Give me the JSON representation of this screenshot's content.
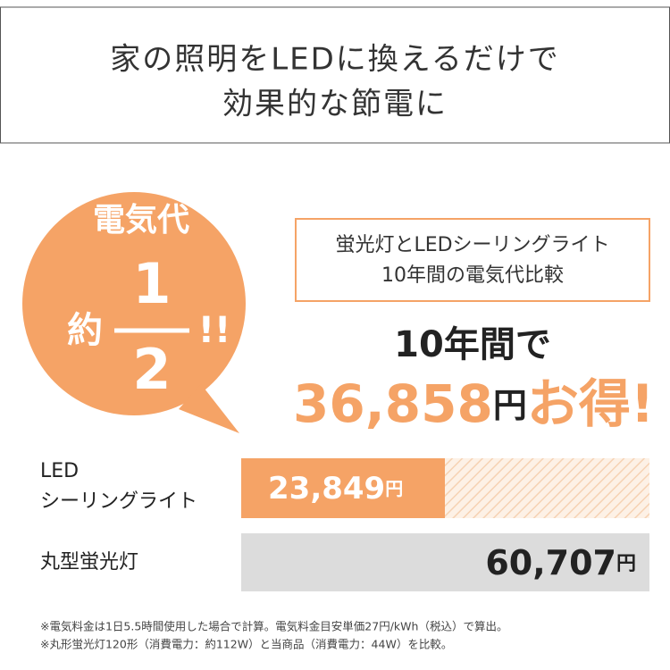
{
  "header": {
    "lines": [
      "家の照明をLEDに換えるだけで",
      "効果的な節電に"
    ]
  },
  "badge": {
    "top": "電気代",
    "prefix": "約",
    "numerator": "1",
    "denominator": "2",
    "suffix": "!!"
  },
  "box": {
    "lines": [
      "蛍光灯とLEDシーリングライト",
      "10年間の電気代比較"
    ]
  },
  "headline": "10年間で",
  "savings": {
    "amount": "36,858",
    "unit": "円",
    "suffix": "お得!"
  },
  "rows": [
    {
      "label_lines": [
        "LED",
        "シーリングライト"
      ],
      "value": "23,849",
      "unit": "円"
    },
    {
      "label_lines": [
        "丸型蛍光灯"
      ],
      "value": "60,707",
      "unit": "円"
    }
  ],
  "notes": [
    "※電気料金は1日5.5時間使用した場合で計算。電気料金目安単価27円/kWh（税込）で算出。",
    "※丸形蛍光灯120形（消費電力：約112W）と当商品（消費電力：44W）を比較。"
  ]
}
